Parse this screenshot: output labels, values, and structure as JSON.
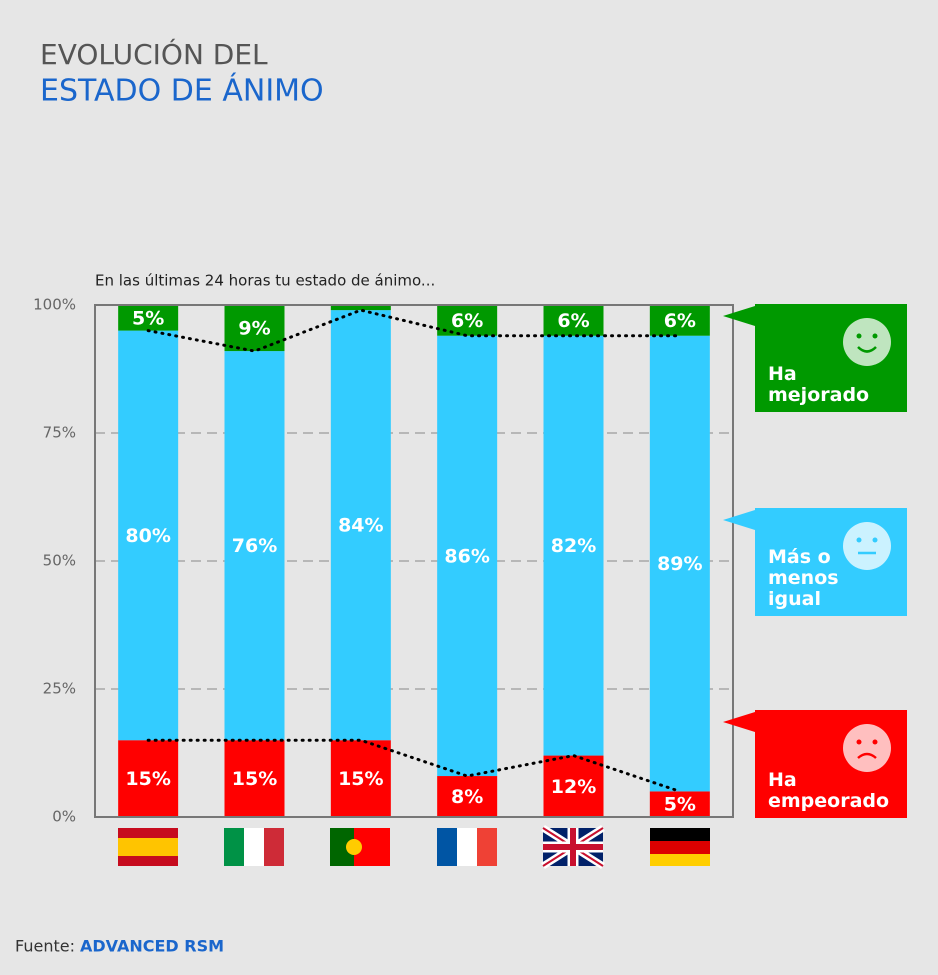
{
  "chart_data": {
    "type": "stacked-bar",
    "title": "EVOLUCIÓN DEL",
    "title_highlight": "ESTADO DE ÁNIMO",
    "subtitle": "En las últimas 24 horas tu estado de ánimo...",
    "categories": [
      null,
      null,
      null,
      null,
      null,
      null
    ],
    "series": [
      {
        "name": "Ha empeorado",
        "color": "#ff0000",
        "values": [
          15,
          15,
          15,
          8,
          12,
          5
        ],
        "value_labels": [
          "15%",
          "15%",
          "15%",
          "8%",
          "12%",
          "5%"
        ]
      },
      {
        "name": "Más o menos igual",
        "color": "#33ccff",
        "values": [
          80,
          76,
          84,
          86,
          82,
          89
        ],
        "value_labels": [
          "80%",
          "76%",
          "84%",
          "86%",
          "82%",
          "89%"
        ]
      },
      {
        "name": "Ha mejorado",
        "color": "#009900",
        "values": [
          5,
          9,
          1,
          6,
          6,
          6
        ],
        "value_labels": [
          "5%",
          "9%",
          null,
          "6%",
          "6%",
          "6%"
        ]
      }
    ],
    "ylim": [
      0,
      100
    ],
    "yticks": [
      {
        "value": 0,
        "label": "0%"
      },
      {
        "value": 25,
        "label": "25%"
      },
      {
        "value": 50,
        "label": "50%"
      },
      {
        "value": 75,
        "label": "75%"
      },
      {
        "value": 100,
        "label": "100%"
      }
    ],
    "grid": true,
    "legend": "right",
    "source_label": "Fuente:",
    "source": "ADVANCED RSM"
  }
}
